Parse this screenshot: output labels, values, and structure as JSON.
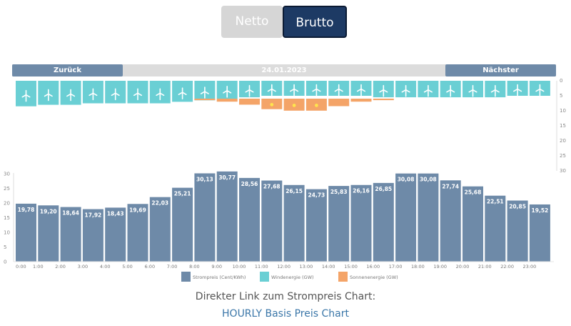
{
  "toggle": {
    "netto": "Netto",
    "brutto": "Brutto",
    "active": "Brutto"
  },
  "nav": {
    "back": "Zurück",
    "date": "24.01.2023",
    "next": "Nächster"
  },
  "colors": {
    "price": "#6e8aa8",
    "wind": "#6acfd4",
    "solar": "#f4a468",
    "toggle_active": "#1d3a64",
    "toggle_inactive": "#d6d6d6"
  },
  "chart_data": {
    "type": "bar",
    "categories": [
      "0:00",
      "1:00",
      "2:00",
      "3:00",
      "4:00",
      "5:00",
      "6:00",
      "7:00",
      "8:00",
      "9:00",
      "10:00",
      "11:00",
      "12:00",
      "13:00",
      "14:00",
      "15:00",
      "16:00",
      "17:00",
      "18:00",
      "19:00",
      "20:00",
      "21:00",
      "22:00",
      "23:00"
    ],
    "series": [
      {
        "name": "Strompreis (Cent/KWh)",
        "type": "bar",
        "values": [
          19.78,
          19.2,
          18.64,
          17.92,
          18.43,
          19.69,
          22.03,
          25.21,
          30.13,
          30.77,
          28.56,
          27.68,
          26.15,
          24.73,
          25.83,
          26.16,
          26.85,
          30.08,
          30.08,
          27.74,
          25.68,
          22.51,
          20.85,
          19.52
        ],
        "labels": [
          "19,78",
          "19,20",
          "18,64",
          "17,92",
          "18,43",
          "19,69",
          "22,03",
          "25,21",
          "30,13",
          "30,77",
          "28,56",
          "27,68",
          "26,15",
          "24,73",
          "25,83",
          "26,16",
          "26,85",
          "30,08",
          "30,08",
          "27,74",
          "25,68",
          "22,51",
          "20,85",
          "19,52"
        ]
      },
      {
        "name": "Windenergie (GW)",
        "type": "bar",
        "values": [
          8.5,
          8.0,
          8.0,
          7.5,
          7.5,
          7.5,
          7.5,
          7.0,
          6.5,
          6.0,
          5.5,
          5.0,
          5.0,
          5.0,
          5.0,
          5.0,
          5.5,
          5.5,
          5.5,
          5.5,
          5.5,
          5.5,
          5.0,
          5.0
        ]
      },
      {
        "name": "Sonnenenergie (GW)",
        "type": "bar",
        "values": [
          0,
          0,
          0,
          0,
          0,
          0,
          0,
          0,
          0.5,
          1.0,
          2.0,
          3.5,
          4.0,
          4.0,
          2.5,
          1.0,
          0.5,
          0,
          0,
          0,
          0,
          0,
          0,
          0
        ]
      }
    ],
    "price_axis": {
      "ylim": [
        0,
        30
      ],
      "ticks": [
        0,
        5,
        10,
        15,
        20,
        25,
        30
      ]
    },
    "energy_axis": {
      "ylim": [
        0,
        30
      ],
      "ticks": [
        0,
        5,
        10,
        15,
        20,
        25,
        30
      ],
      "inverted": true
    },
    "legend": {
      "placement": "bottom-center"
    }
  },
  "link": {
    "intro": "Direkter Link zum Strompreis Chart:",
    "highlight": "HOURLY",
    "rest": " Basis Preis Chart"
  }
}
